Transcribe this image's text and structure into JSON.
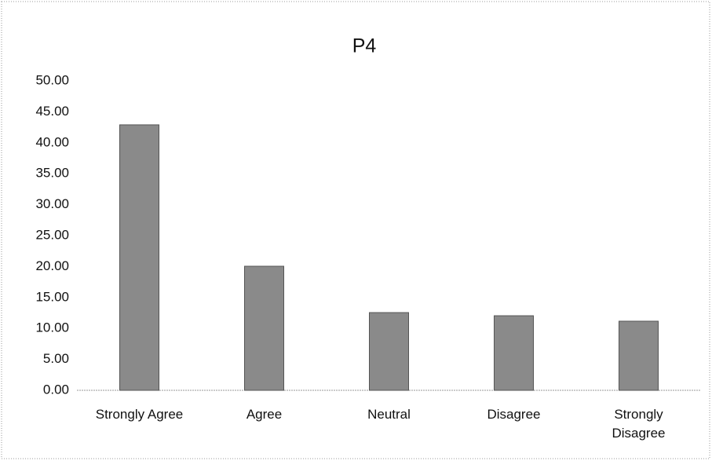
{
  "chart_data": {
    "type": "bar",
    "title": "P4",
    "categories": [
      "Strongly Agree",
      "Agree",
      "Neutral",
      "Disagree",
      "Strongly Disagree"
    ],
    "values": [
      42.9,
      20.05,
      12.56,
      12.05,
      11.17
    ],
    "color": "#8a8a8a",
    "ylim": [
      0,
      50
    ],
    "yticks": [
      {
        "value": 0,
        "label": "0.00"
      },
      {
        "value": 5,
        "label": "5.00"
      },
      {
        "value": 10,
        "label": "10.00"
      },
      {
        "value": 15,
        "label": "15.00"
      },
      {
        "value": 20,
        "label": "20.00"
      },
      {
        "value": 25,
        "label": "25.00"
      },
      {
        "value": 30,
        "label": "30.00"
      },
      {
        "value": 35,
        "label": "35.00"
      },
      {
        "value": 40,
        "label": "40.00"
      },
      {
        "value": 45,
        "label": "45.00"
      },
      {
        "value": 50,
        "label": "50.00"
      }
    ],
    "grid": false
  }
}
